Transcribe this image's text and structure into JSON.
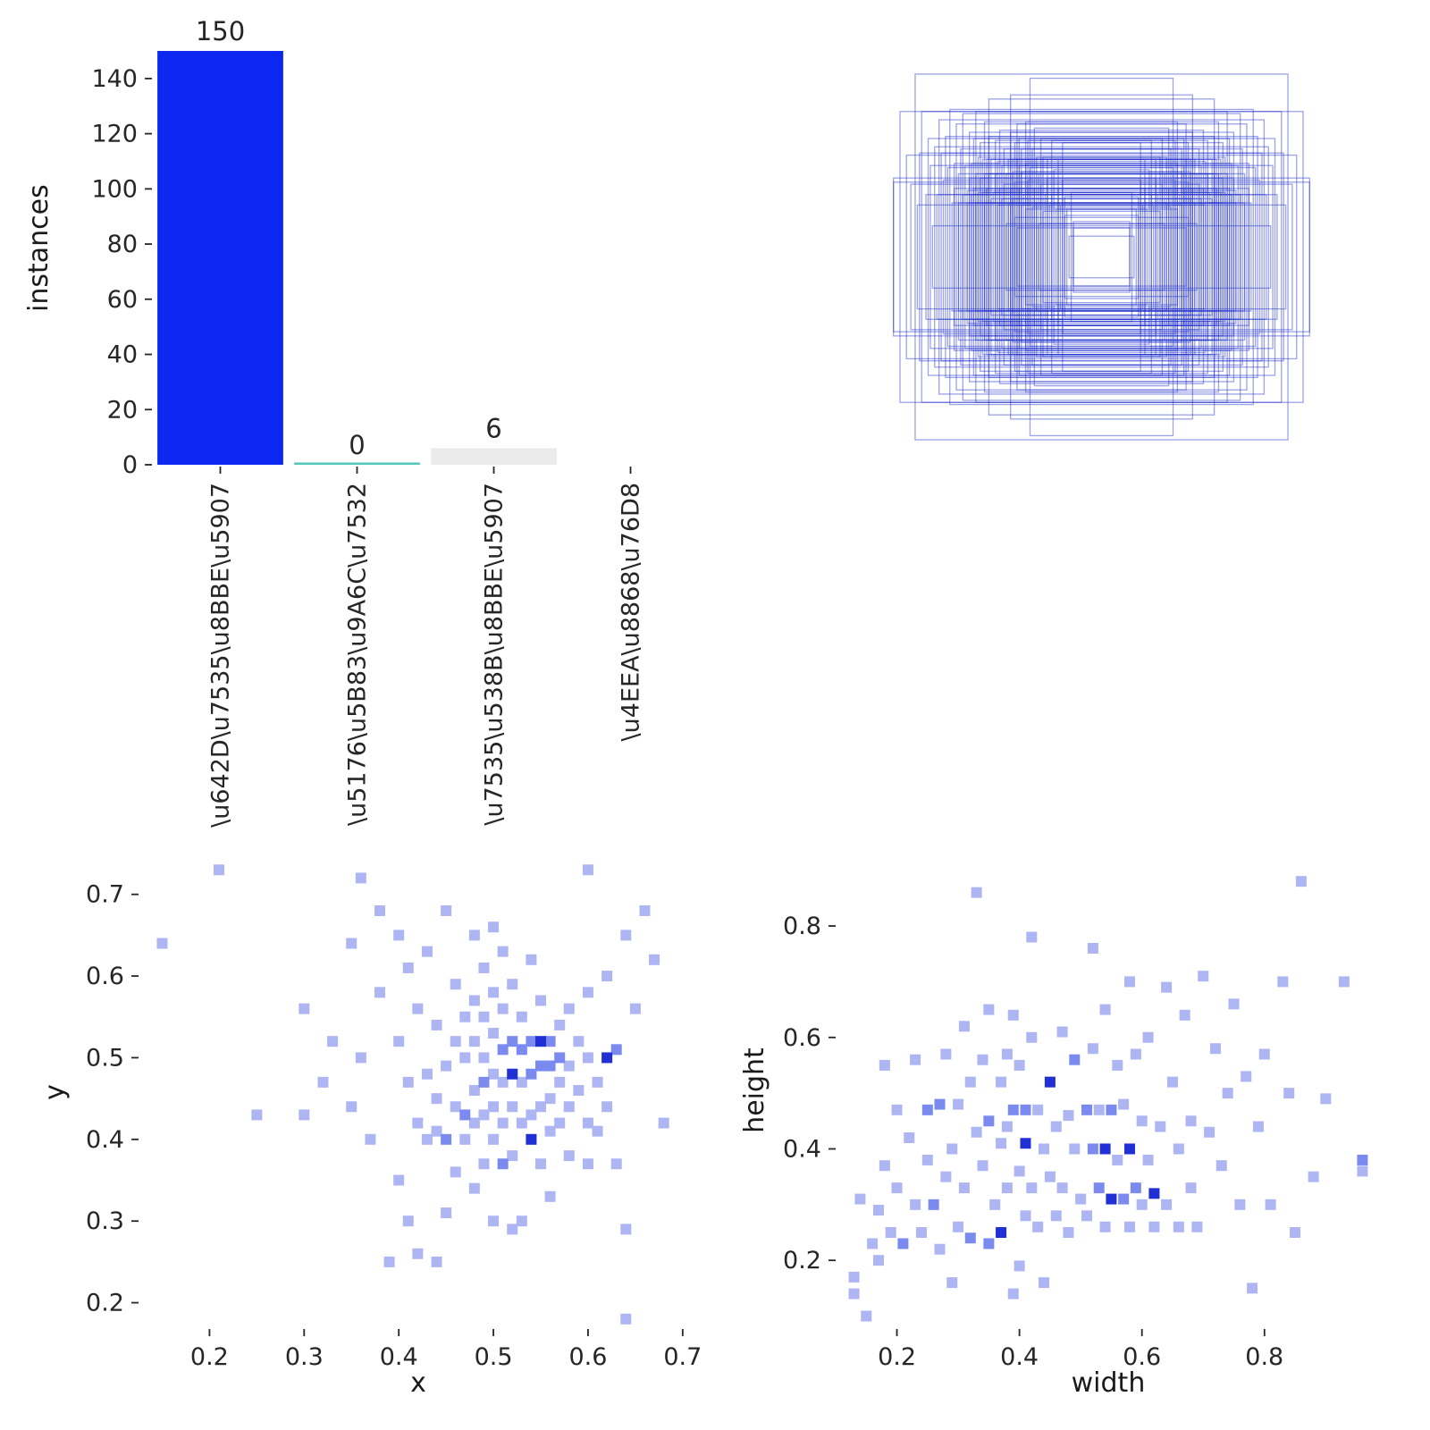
{
  "figure": {
    "background": "#ffffff",
    "text_color": "#262626"
  },
  "chart_data": [
    {
      "id": "instances_bar",
      "type": "bar",
      "title": "",
      "xlabel": "",
      "ylabel": "instances",
      "categories": [
        "\\u642D\\u7535\\u8BBE\\u5907",
        "\\u5176\\u5B83\\u9A6C\\u7532",
        "\\u7535\\u538B\\u8BBE\\u5907",
        "\\u4EEA\\u8868\\u76D8"
      ],
      "values": [
        150,
        0,
        6,
        0
      ],
      "annotations": [
        "150",
        "0",
        "6",
        ""
      ],
      "bar_colors": [
        "#0b27f0",
        "#54c6b7",
        "#ebebeb",
        "none"
      ],
      "ylim": [
        0,
        150
      ],
      "yticks": [
        0,
        20,
        40,
        60,
        80,
        100,
        120,
        140
      ],
      "tick_rotation": 90,
      "grid": false,
      "legend": "none"
    },
    {
      "id": "boxes_overlay",
      "type": "boxes",
      "description": "all bounding boxes drawn centered, outlines only",
      "stroke_color": "#2333cc",
      "stroke_opacity": 0.45,
      "source": "wh_scatter points"
    },
    {
      "id": "xy_scatter",
      "type": "scatter",
      "title": "",
      "xlabel": "x",
      "ylabel": "y",
      "xticks": [
        0.2,
        0.3,
        0.4,
        0.5,
        0.6,
        0.7
      ],
      "yticks": [
        0.2,
        0.3,
        0.4,
        0.5,
        0.6,
        0.7
      ],
      "xlim": [
        0.125,
        0.72
      ],
      "ylim": [
        0.17,
        0.75
      ],
      "marker": "square",
      "grid": false,
      "colors": {
        "1": "#aeb5f3",
        "2": "#7b8aee",
        "3": "#2030d5"
      },
      "points": [
        [
          0.15,
          0.64,
          1
        ],
        [
          0.21,
          0.73,
          1
        ],
        [
          0.25,
          0.43,
          1
        ],
        [
          0.3,
          0.56,
          1
        ],
        [
          0.3,
          0.43,
          1
        ],
        [
          0.32,
          0.47,
          1
        ],
        [
          0.33,
          0.52,
          1
        ],
        [
          0.35,
          0.64,
          1
        ],
        [
          0.35,
          0.44,
          1
        ],
        [
          0.36,
          0.72,
          1
        ],
        [
          0.36,
          0.5,
          1
        ],
        [
          0.37,
          0.4,
          1
        ],
        [
          0.38,
          0.68,
          1
        ],
        [
          0.38,
          0.58,
          1
        ],
        [
          0.39,
          0.25,
          1
        ],
        [
          0.4,
          0.65,
          1
        ],
        [
          0.4,
          0.52,
          1
        ],
        [
          0.4,
          0.35,
          1
        ],
        [
          0.41,
          0.3,
          1
        ],
        [
          0.41,
          0.47,
          1
        ],
        [
          0.41,
          0.61,
          1
        ],
        [
          0.42,
          0.56,
          1
        ],
        [
          0.42,
          0.42,
          1
        ],
        [
          0.42,
          0.26,
          1
        ],
        [
          0.43,
          0.63,
          1
        ],
        [
          0.43,
          0.48,
          1
        ],
        [
          0.43,
          0.4,
          1
        ],
        [
          0.44,
          0.54,
          1
        ],
        [
          0.44,
          0.45,
          1
        ],
        [
          0.44,
          0.41,
          1
        ],
        [
          0.44,
          0.25,
          1
        ],
        [
          0.45,
          0.68,
          1
        ],
        [
          0.45,
          0.49,
          1
        ],
        [
          0.45,
          0.4,
          2
        ],
        [
          0.45,
          0.31,
          1
        ],
        [
          0.46,
          0.59,
          1
        ],
        [
          0.46,
          0.52,
          1
        ],
        [
          0.46,
          0.44,
          1
        ],
        [
          0.46,
          0.36,
          1
        ],
        [
          0.47,
          0.55,
          1
        ],
        [
          0.47,
          0.5,
          1
        ],
        [
          0.47,
          0.43,
          2
        ],
        [
          0.47,
          0.4,
          1
        ],
        [
          0.48,
          0.65,
          1
        ],
        [
          0.48,
          0.57,
          1
        ],
        [
          0.48,
          0.52,
          1
        ],
        [
          0.48,
          0.46,
          1
        ],
        [
          0.48,
          0.42,
          1
        ],
        [
          0.48,
          0.34,
          1
        ],
        [
          0.49,
          0.61,
          1
        ],
        [
          0.49,
          0.55,
          1
        ],
        [
          0.49,
          0.5,
          1
        ],
        [
          0.49,
          0.47,
          2
        ],
        [
          0.49,
          0.43,
          1
        ],
        [
          0.49,
          0.37,
          1
        ],
        [
          0.5,
          0.66,
          1
        ],
        [
          0.5,
          0.58,
          1
        ],
        [
          0.5,
          0.53,
          1
        ],
        [
          0.5,
          0.48,
          1
        ],
        [
          0.5,
          0.44,
          1
        ],
        [
          0.5,
          0.4,
          1
        ],
        [
          0.5,
          0.3,
          1
        ],
        [
          0.51,
          0.63,
          1
        ],
        [
          0.51,
          0.56,
          1
        ],
        [
          0.51,
          0.51,
          2
        ],
        [
          0.51,
          0.47,
          1
        ],
        [
          0.51,
          0.42,
          1
        ],
        [
          0.51,
          0.37,
          2
        ],
        [
          0.52,
          0.59,
          1
        ],
        [
          0.52,
          0.52,
          2
        ],
        [
          0.52,
          0.48,
          3
        ],
        [
          0.52,
          0.44,
          1
        ],
        [
          0.52,
          0.38,
          1
        ],
        [
          0.52,
          0.29,
          1
        ],
        [
          0.53,
          0.55,
          1
        ],
        [
          0.53,
          0.51,
          2
        ],
        [
          0.53,
          0.47,
          1
        ],
        [
          0.53,
          0.42,
          1
        ],
        [
          0.53,
          0.3,
          1
        ],
        [
          0.54,
          0.62,
          1
        ],
        [
          0.54,
          0.52,
          2
        ],
        [
          0.54,
          0.48,
          2
        ],
        [
          0.54,
          0.43,
          1
        ],
        [
          0.54,
          0.4,
          3
        ],
        [
          0.55,
          0.57,
          1
        ],
        [
          0.55,
          0.52,
          3
        ],
        [
          0.55,
          0.49,
          2
        ],
        [
          0.55,
          0.44,
          1
        ],
        [
          0.55,
          0.37,
          1
        ],
        [
          0.56,
          0.52,
          2
        ],
        [
          0.56,
          0.49,
          2
        ],
        [
          0.56,
          0.45,
          1
        ],
        [
          0.56,
          0.41,
          1
        ],
        [
          0.56,
          0.33,
          1
        ],
        [
          0.57,
          0.54,
          1
        ],
        [
          0.57,
          0.5,
          2
        ],
        [
          0.57,
          0.47,
          1
        ],
        [
          0.57,
          0.42,
          1
        ],
        [
          0.58,
          0.56,
          1
        ],
        [
          0.58,
          0.49,
          1
        ],
        [
          0.58,
          0.44,
          1
        ],
        [
          0.58,
          0.38,
          1
        ],
        [
          0.59,
          0.52,
          1
        ],
        [
          0.59,
          0.46,
          1
        ],
        [
          0.6,
          0.73,
          1
        ],
        [
          0.6,
          0.58,
          1
        ],
        [
          0.6,
          0.5,
          1
        ],
        [
          0.6,
          0.42,
          1
        ],
        [
          0.6,
          0.37,
          1
        ],
        [
          0.61,
          0.47,
          1
        ],
        [
          0.61,
          0.41,
          1
        ],
        [
          0.62,
          0.6,
          1
        ],
        [
          0.62,
          0.5,
          3
        ],
        [
          0.62,
          0.44,
          1
        ],
        [
          0.63,
          0.51,
          2
        ],
        [
          0.63,
          0.37,
          1
        ],
        [
          0.64,
          0.65,
          1
        ],
        [
          0.64,
          0.29,
          1
        ],
        [
          0.64,
          0.18,
          1
        ],
        [
          0.65,
          0.56,
          1
        ],
        [
          0.66,
          0.68,
          1
        ],
        [
          0.67,
          0.62,
          1
        ],
        [
          0.68,
          0.42,
          1
        ]
      ]
    },
    {
      "id": "wh_scatter",
      "type": "scatter",
      "title": "",
      "xlabel": "width",
      "ylabel": "height",
      "xticks": [
        0.2,
        0.4,
        0.6,
        0.8
      ],
      "yticks": [
        0.2,
        0.4,
        0.6,
        0.8
      ],
      "xlim": [
        0.1,
        0.99
      ],
      "ylim": [
        0.08,
        0.93
      ],
      "marker": "square",
      "grid": false,
      "colors": {
        "1": "#aeb5f3",
        "2": "#7b8aee",
        "3": "#2030d5"
      },
      "points": [
        [
          0.13,
          0.17,
          1
        ],
        [
          0.13,
          0.14,
          1
        ],
        [
          0.14,
          0.31,
          1
        ],
        [
          0.15,
          0.1,
          1
        ],
        [
          0.16,
          0.23,
          1
        ],
        [
          0.17,
          0.29,
          1
        ],
        [
          0.17,
          0.2,
          1
        ],
        [
          0.18,
          0.55,
          1
        ],
        [
          0.18,
          0.37,
          1
        ],
        [
          0.19,
          0.25,
          1
        ],
        [
          0.2,
          0.47,
          1
        ],
        [
          0.2,
          0.33,
          1
        ],
        [
          0.21,
          0.23,
          2
        ],
        [
          0.22,
          0.42,
          1
        ],
        [
          0.23,
          0.56,
          1
        ],
        [
          0.23,
          0.3,
          1
        ],
        [
          0.24,
          0.25,
          1
        ],
        [
          0.25,
          0.47,
          2
        ],
        [
          0.25,
          0.38,
          1
        ],
        [
          0.26,
          0.3,
          2
        ],
        [
          0.27,
          0.48,
          2
        ],
        [
          0.27,
          0.22,
          1
        ],
        [
          0.28,
          0.57,
          1
        ],
        [
          0.28,
          0.35,
          1
        ],
        [
          0.29,
          0.4,
          1
        ],
        [
          0.29,
          0.16,
          1
        ],
        [
          0.3,
          0.48,
          1
        ],
        [
          0.3,
          0.26,
          1
        ],
        [
          0.31,
          0.62,
          1
        ],
        [
          0.31,
          0.33,
          1
        ],
        [
          0.32,
          0.52,
          1
        ],
        [
          0.32,
          0.24,
          2
        ],
        [
          0.33,
          0.43,
          1
        ],
        [
          0.33,
          0.86,
          1
        ],
        [
          0.34,
          0.56,
          1
        ],
        [
          0.34,
          0.37,
          1
        ],
        [
          0.35,
          0.65,
          1
        ],
        [
          0.35,
          0.45,
          2
        ],
        [
          0.35,
          0.23,
          2
        ],
        [
          0.36,
          0.3,
          1
        ],
        [
          0.37,
          0.52,
          1
        ],
        [
          0.37,
          0.41,
          1
        ],
        [
          0.37,
          0.25,
          3
        ],
        [
          0.38,
          0.57,
          1
        ],
        [
          0.38,
          0.44,
          1
        ],
        [
          0.38,
          0.33,
          1
        ],
        [
          0.39,
          0.64,
          1
        ],
        [
          0.39,
          0.47,
          2
        ],
        [
          0.39,
          0.14,
          1
        ],
        [
          0.4,
          0.55,
          1
        ],
        [
          0.4,
          0.36,
          1
        ],
        [
          0.4,
          0.19,
          1
        ],
        [
          0.41,
          0.47,
          2
        ],
        [
          0.41,
          0.41,
          3
        ],
        [
          0.41,
          0.28,
          1
        ],
        [
          0.42,
          0.78,
          1
        ],
        [
          0.42,
          0.6,
          1
        ],
        [
          0.42,
          0.33,
          1
        ],
        [
          0.43,
          0.47,
          1
        ],
        [
          0.43,
          0.26,
          1
        ],
        [
          0.44,
          0.4,
          1
        ],
        [
          0.44,
          0.16,
          1
        ],
        [
          0.45,
          0.52,
          3
        ],
        [
          0.45,
          0.35,
          1
        ],
        [
          0.46,
          0.44,
          1
        ],
        [
          0.46,
          0.28,
          1
        ],
        [
          0.47,
          0.61,
          1
        ],
        [
          0.47,
          0.33,
          1
        ],
        [
          0.48,
          0.46,
          1
        ],
        [
          0.48,
          0.25,
          1
        ],
        [
          0.49,
          0.56,
          2
        ],
        [
          0.49,
          0.4,
          1
        ],
        [
          0.5,
          0.31,
          1
        ],
        [
          0.51,
          0.47,
          2
        ],
        [
          0.51,
          0.28,
          1
        ],
        [
          0.52,
          0.76,
          1
        ],
        [
          0.52,
          0.58,
          1
        ],
        [
          0.52,
          0.4,
          2
        ],
        [
          0.53,
          0.47,
          1
        ],
        [
          0.53,
          0.33,
          2
        ],
        [
          0.54,
          0.65,
          1
        ],
        [
          0.54,
          0.4,
          3
        ],
        [
          0.54,
          0.26,
          1
        ],
        [
          0.55,
          0.47,
          2
        ],
        [
          0.55,
          0.31,
          3
        ],
        [
          0.56,
          0.55,
          1
        ],
        [
          0.56,
          0.38,
          1
        ],
        [
          0.57,
          0.48,
          1
        ],
        [
          0.57,
          0.31,
          2
        ],
        [
          0.58,
          0.7,
          1
        ],
        [
          0.58,
          0.4,
          3
        ],
        [
          0.58,
          0.26,
          1
        ],
        [
          0.59,
          0.57,
          1
        ],
        [
          0.59,
          0.33,
          2
        ],
        [
          0.6,
          0.45,
          1
        ],
        [
          0.6,
          0.3,
          1
        ],
        [
          0.61,
          0.6,
          1
        ],
        [
          0.61,
          0.38,
          1
        ],
        [
          0.62,
          0.32,
          3
        ],
        [
          0.62,
          0.26,
          1
        ],
        [
          0.63,
          0.44,
          1
        ],
        [
          0.64,
          0.69,
          1
        ],
        [
          0.64,
          0.3,
          1
        ],
        [
          0.65,
          0.52,
          1
        ],
        [
          0.66,
          0.4,
          1
        ],
        [
          0.66,
          0.26,
          1
        ],
        [
          0.67,
          0.64,
          1
        ],
        [
          0.68,
          0.45,
          1
        ],
        [
          0.68,
          0.33,
          1
        ],
        [
          0.69,
          0.26,
          1
        ],
        [
          0.7,
          0.71,
          1
        ],
        [
          0.71,
          0.43,
          1
        ],
        [
          0.72,
          0.58,
          1
        ],
        [
          0.73,
          0.37,
          1
        ],
        [
          0.74,
          0.5,
          1
        ],
        [
          0.75,
          0.66,
          1
        ],
        [
          0.76,
          0.3,
          1
        ],
        [
          0.77,
          0.53,
          1
        ],
        [
          0.78,
          0.15,
          1
        ],
        [
          0.79,
          0.44,
          1
        ],
        [
          0.8,
          0.57,
          1
        ],
        [
          0.81,
          0.3,
          1
        ],
        [
          0.83,
          0.7,
          1
        ],
        [
          0.84,
          0.5,
          1
        ],
        [
          0.85,
          0.25,
          1
        ],
        [
          0.86,
          0.88,
          1
        ],
        [
          0.88,
          0.35,
          1
        ],
        [
          0.9,
          0.49,
          1
        ],
        [
          0.93,
          0.7,
          1
        ],
        [
          0.96,
          0.38,
          2
        ],
        [
          0.96,
          0.36,
          1
        ]
      ]
    }
  ]
}
